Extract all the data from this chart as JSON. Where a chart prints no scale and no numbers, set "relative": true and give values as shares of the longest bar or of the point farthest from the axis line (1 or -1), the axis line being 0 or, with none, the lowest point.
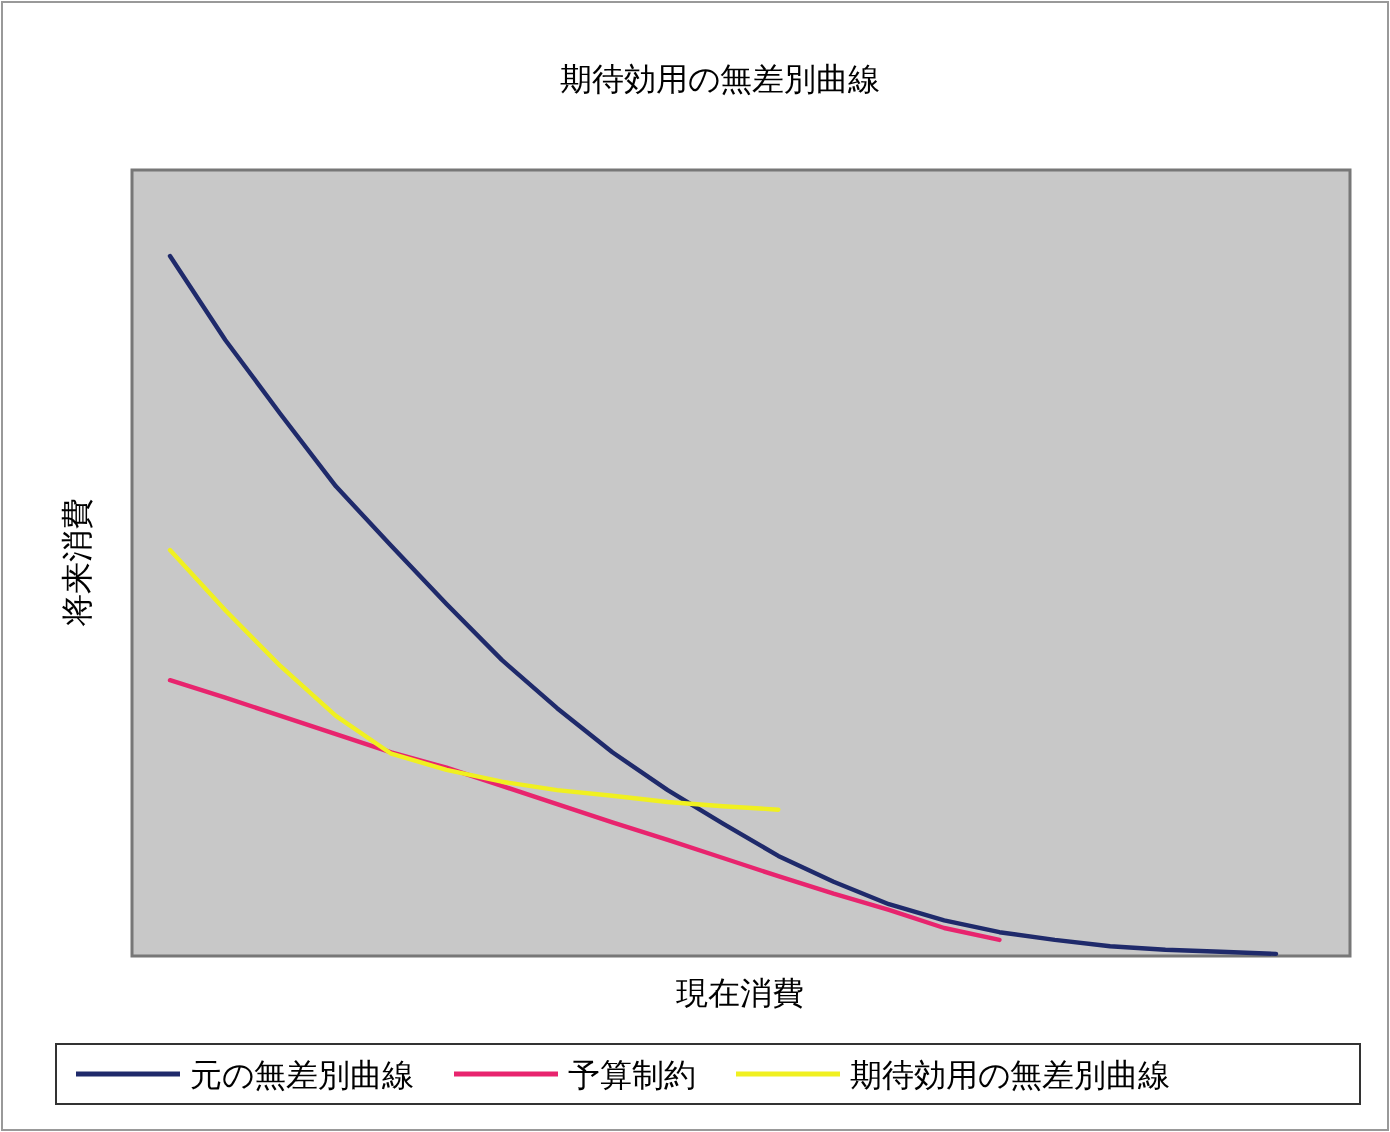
{
  "chart_data": {
    "type": "line",
    "title": "期待効用の無差別曲線",
    "xlabel": "現在消費",
    "ylabel": "将来消費",
    "relative": true,
    "legend": "bottom",
    "categories": [
      null,
      null,
      null,
      null,
      null,
      null,
      null,
      null,
      null,
      null,
      null,
      null,
      null,
      null,
      null,
      null,
      null,
      null,
      null,
      null,
      null
    ],
    "series": [
      {
        "name": "元の無差別曲線",
        "color": "#1f2a6b",
        "values": [
          1,
          0.88,
          0.774,
          0.671,
          0.586,
          0.503,
          0.423,
          0.354,
          0.291,
          0.237,
          0.189,
          0.143,
          0.106,
          0.074,
          0.051,
          0.034,
          0.023,
          0.014,
          0.009,
          0.006,
          0.003
        ]
      },
      {
        "name": "予算制約",
        "color": "#e8246e",
        "values": [
          0.394,
          0.369,
          0.343,
          0.317,
          0.291,
          0.269,
          0.243,
          0.217,
          0.191,
          0.166,
          0.14,
          0.114,
          0.089,
          0.066,
          0.04,
          0.023,
          null,
          null,
          null,
          null,
          null
        ]
      },
      {
        "name": "期待効用の無差別曲線",
        "color": "#f0f020",
        "values": [
          0.58,
          0.494,
          0.414,
          0.343,
          0.289,
          0.266,
          0.249,
          0.237,
          0.229,
          0.22,
          0.214,
          0.209,
          null,
          null,
          null,
          null,
          null,
          null,
          null,
          null,
          null
        ]
      }
    ]
  }
}
